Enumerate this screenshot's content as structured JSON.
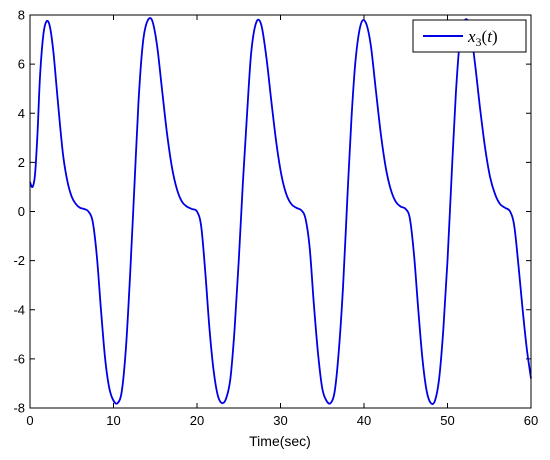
{
  "chart_data": {
    "type": "line",
    "title": "",
    "xlabel": "Time(sec)",
    "ylabel": "",
    "xlim": [
      0,
      60
    ],
    "ylim": [
      -8,
      8
    ],
    "xticks": [
      0,
      10,
      20,
      30,
      40,
      50,
      60
    ],
    "yticks": [
      -8,
      -6,
      -4,
      -2,
      0,
      2,
      4,
      6,
      8
    ],
    "grid": false,
    "legend": {
      "placement": "top-right"
    },
    "series": [
      {
        "name": "x3(t)",
        "color": "#0000e6",
        "x": [
          0,
          0.3,
          0.6,
          0.9,
          1.2,
          1.6,
          2.0,
          2.4,
          2.8,
          3.2,
          3.6,
          4.0,
          4.5,
          5.0,
          5.5,
          6.0,
          6.5,
          7.0,
          7.5,
          8.0,
          8.5,
          9.0,
          9.5,
          10.0,
          10.5,
          11.0,
          11.5,
          12.0,
          12.5,
          13.0,
          13.5,
          14.0,
          14.6,
          15.2,
          15.8,
          16.4,
          17.0,
          17.6,
          18.2,
          18.8,
          19.4,
          20.0,
          20.5,
          21.0,
          21.5,
          22.0,
          22.5,
          23.0,
          23.5,
          24.0,
          24.5,
          25.0,
          25.5,
          26.0,
          26.5,
          27.1,
          27.7,
          28.3,
          28.9,
          29.5,
          30.1,
          30.7,
          31.3,
          31.9,
          32.5,
          33.0,
          33.5,
          34.0,
          34.5,
          35.0,
          35.5,
          36.0,
          36.5,
          37.0,
          37.5,
          38.0,
          38.5,
          39.0,
          39.6,
          40.2,
          40.8,
          41.4,
          42.0,
          42.6,
          43.2,
          43.8,
          44.4,
          45.0,
          45.5,
          46.0,
          46.5,
          47.0,
          47.5,
          48.0,
          48.5,
          49.0,
          49.5,
          50.0,
          50.5,
          51.0,
          51.5,
          52.1,
          52.7,
          53.3,
          53.9,
          54.5,
          55.1,
          55.7,
          56.3,
          56.9,
          57.5,
          58.0,
          58.5,
          59.0,
          59.5,
          60.0
        ],
        "y": [
          1.2,
          1.0,
          1.5,
          3.2,
          5.5,
          7.2,
          7.75,
          7.5,
          6.5,
          5.0,
          3.5,
          2.2,
          1.2,
          0.6,
          0.3,
          0.15,
          0.1,
          0.0,
          -0.4,
          -1.8,
          -4.0,
          -6.0,
          -7.2,
          -7.7,
          -7.8,
          -7.3,
          -5.5,
          -2.5,
          1.0,
          4.5,
          6.8,
          7.7,
          7.8,
          6.8,
          5.0,
          3.2,
          1.8,
          0.9,
          0.4,
          0.2,
          0.1,
          0.0,
          -0.6,
          -2.5,
          -4.8,
          -6.5,
          -7.5,
          -7.8,
          -7.6,
          -6.8,
          -4.8,
          -2.0,
          1.2,
          4.0,
          6.5,
          7.7,
          7.6,
          6.3,
          4.5,
          2.8,
          1.5,
          0.7,
          0.3,
          0.15,
          0.05,
          -0.3,
          -1.5,
          -3.8,
          -5.8,
          -7.2,
          -7.7,
          -7.8,
          -7.3,
          -5.6,
          -3.0,
          0.5,
          3.8,
          6.2,
          7.6,
          7.7,
          6.8,
          5.0,
          3.2,
          1.8,
          0.9,
          0.4,
          0.2,
          0.1,
          -0.3,
          -1.8,
          -4.0,
          -6.0,
          -7.3,
          -7.8,
          -7.7,
          -6.8,
          -4.8,
          -2.0,
          1.5,
          4.8,
          7.0,
          7.8,
          7.5,
          6.0,
          4.2,
          2.6,
          1.4,
          0.7,
          0.3,
          0.15,
          0.0,
          -0.6,
          -2.2,
          -4.0,
          -5.6,
          -6.8
        ]
      }
    ]
  }
}
